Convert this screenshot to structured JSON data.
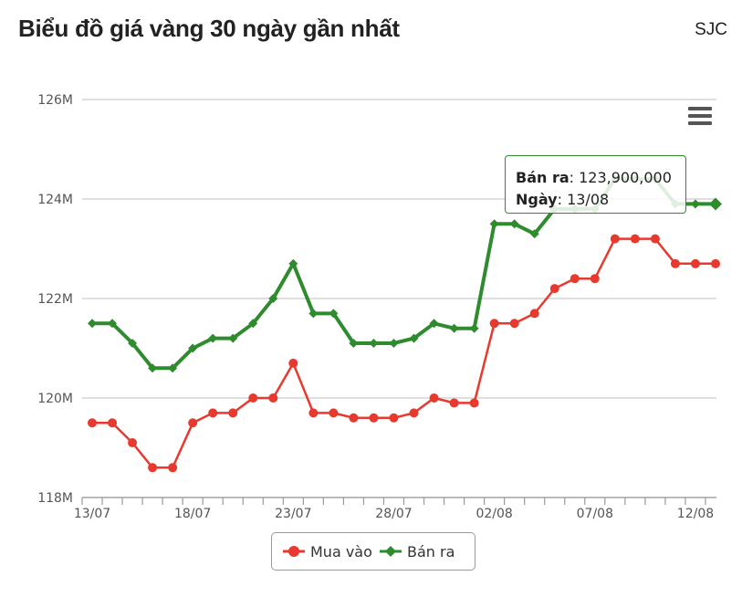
{
  "header": {
    "title": "Biểu đồ giá vàng 30 ngày gần nhất",
    "brand": "SJC"
  },
  "chart_data": {
    "type": "line",
    "ylim": [
      118000000,
      126000000
    ],
    "y_ticks": [
      {
        "value": 118000000,
        "label": "118M"
      },
      {
        "value": 120000000,
        "label": "120M"
      },
      {
        "value": 122000000,
        "label": "122M"
      },
      {
        "value": 124000000,
        "label": "124M"
      },
      {
        "value": 126000000,
        "label": "126M"
      }
    ],
    "x_labels": [
      {
        "index": 0,
        "label": "13/07"
      },
      {
        "index": 5,
        "label": "18/07"
      },
      {
        "index": 10,
        "label": "23/07"
      },
      {
        "index": 15,
        "label": "28/07"
      },
      {
        "index": 20,
        "label": "02/08"
      },
      {
        "index": 25,
        "label": "07/08"
      },
      {
        "index": 30,
        "label": "12/08"
      }
    ],
    "series": [
      {
        "name": "Mua vào",
        "color": "#e8392f",
        "marker": "circle",
        "values": [
          119500000,
          119500000,
          119100000,
          118600000,
          118600000,
          119500000,
          119700000,
          119700000,
          120000000,
          120000000,
          120700000,
          119700000,
          119700000,
          119600000,
          119600000,
          119600000,
          119700000,
          120000000,
          119900000,
          119900000,
          121500000,
          121500000,
          121700000,
          122200000,
          122400000,
          122400000,
          123200000,
          123200000,
          123200000,
          122700000,
          122700000,
          122700000
        ]
      },
      {
        "name": "Bán ra",
        "color": "#2e8b2e",
        "marker": "diamond",
        "values": [
          121500000,
          121500000,
          121100000,
          120600000,
          120600000,
          121000000,
          121200000,
          121200000,
          121500000,
          122000000,
          122700000,
          121700000,
          121700000,
          121100000,
          121100000,
          121100000,
          121200000,
          121500000,
          121400000,
          121400000,
          123500000,
          123500000,
          123300000,
          123800000,
          123800000,
          123800000,
          124400000,
          124400000,
          124400000,
          123900000,
          123900000,
          123900000
        ]
      }
    ],
    "tooltip": {
      "series_label": "Bán ra",
      "value_text": "123,900,000",
      "date_label": "Ngày",
      "date_value": "13/08"
    },
    "legend": {
      "placement": "bottom-center"
    },
    "grid": true
  },
  "icons": {
    "menu": "hamburger-menu-icon"
  }
}
